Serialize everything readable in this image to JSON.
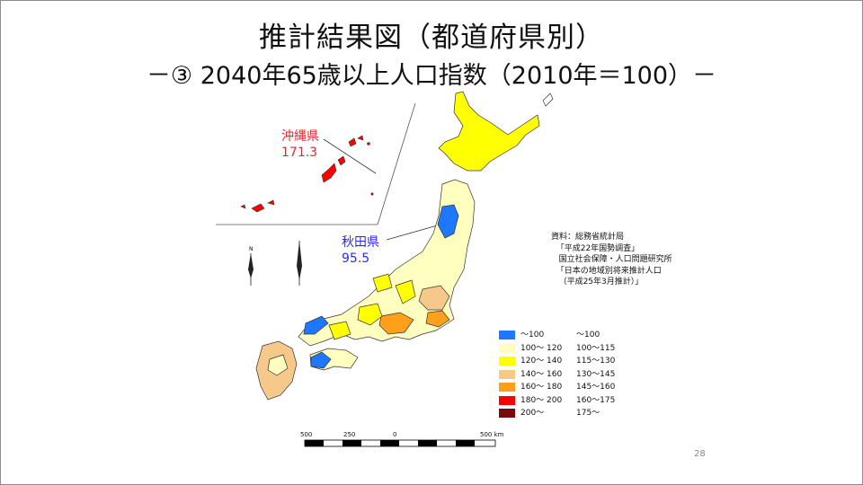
{
  "title": {
    "line1": "推計結果図（都道府県別）",
    "line2": "－③ 2040年65歳以上人口指数（2010年＝100）－"
  },
  "callouts": {
    "okinawa": {
      "name": "沖縄県",
      "value": "171.3",
      "color": "#e8262d"
    },
    "akita": {
      "name": "秋田県",
      "value": "95.5",
      "color": "#2a2aee"
    }
  },
  "source": "資料：総務省統計局\n  「平成22年国勢調査」\n   国立社会保障・人口問題研究所\n  「日本の地域別将来推計人口\n   （平成25年3月推計）」",
  "legend": [
    {
      "range": "～100",
      "range2": "～100",
      "color": "#1e78ff"
    },
    {
      "range": "100～ 120",
      "range2": "100～115",
      "color": "#ffffc0"
    },
    {
      "range": "120～ 140",
      "range2": "115～130",
      "color": "#ffff00"
    },
    {
      "range": "140～ 160",
      "range2": "130～145",
      "color": "#f6c88a"
    },
    {
      "range": "160～ 180",
      "range2": "145～160",
      "color": "#ff9f1a"
    },
    {
      "range": "180～ 200",
      "range2": "160～175",
      "color": "#ff0000"
    },
    {
      "range": "200～",
      "range2": "175～",
      "color": "#7a0a0a"
    }
  ],
  "scale": [
    "500",
    "250",
    "0",
    "500 km"
  ],
  "page_number": "28"
}
